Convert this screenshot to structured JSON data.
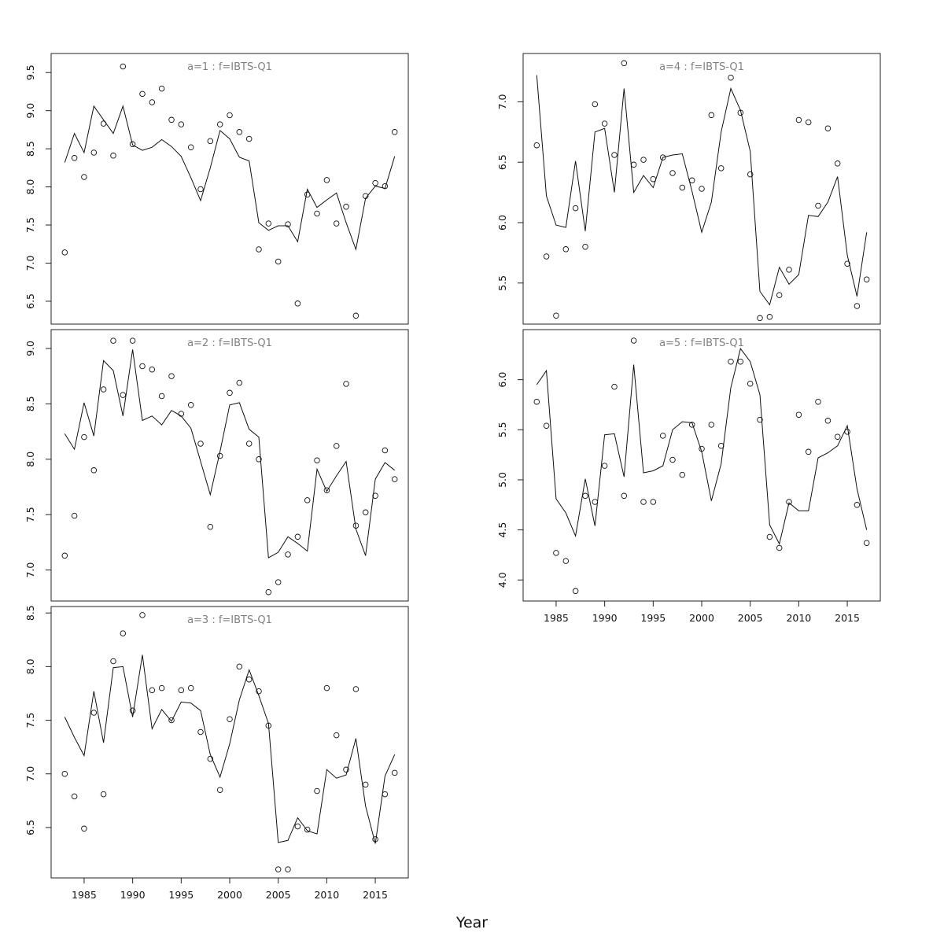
{
  "chart_data": {
    "type": "scatter",
    "xlabel": "Year",
    "panels": [
      {
        "title": "a=1  :  f=IBTS-Q1",
        "ylim": [
          6.2,
          9.75
        ],
        "yticks": [
          6.5,
          7.0,
          7.5,
          8.0,
          8.5,
          9.0,
          9.5
        ],
        "xticks": [],
        "x": [
          1983,
          1984,
          1985,
          1986,
          1987,
          1988,
          1989,
          1990,
          1991,
          1992,
          1993,
          1994,
          1995,
          1996,
          1997,
          1998,
          1999,
          2000,
          2001,
          2002,
          2003,
          2004,
          2005,
          2006,
          2007,
          2008,
          2009,
          2010,
          2011,
          2012,
          2013,
          2014,
          2015,
          2016,
          2017
        ],
        "observed": [
          7.14,
          8.38,
          8.13,
          8.45,
          8.83,
          8.41,
          9.58,
          8.56,
          9.22,
          9.11,
          9.29,
          8.88,
          8.82,
          8.52,
          7.97,
          8.6,
          8.82,
          8.94,
          8.72,
          8.63,
          7.18,
          7.52,
          7.02,
          7.51,
          6.47,
          7.9,
          7.65,
          8.09,
          7.52,
          7.74,
          6.31,
          7.88,
          8.05,
          8.01,
          8.72
        ],
        "fitted": [
          8.32,
          8.7,
          8.45,
          9.06,
          8.88,
          8.7,
          9.06,
          8.55,
          8.48,
          8.52,
          8.62,
          8.53,
          8.4,
          8.12,
          7.82,
          8.25,
          8.74,
          8.63,
          8.39,
          8.34,
          7.53,
          7.43,
          7.49,
          7.49,
          7.28,
          7.97,
          7.73,
          7.83,
          7.92,
          7.53,
          7.18,
          7.85,
          8.01,
          7.98,
          8.4
        ]
      },
      {
        "title": "a=2  :  f=IBTS-Q1",
        "ylim": [
          6.72,
          9.17
        ],
        "yticks": [
          7.0,
          7.5,
          8.0,
          8.5,
          9.0
        ],
        "xticks": [],
        "x": [
          1983,
          1984,
          1985,
          1986,
          1987,
          1988,
          1989,
          1990,
          1991,
          1992,
          1993,
          1994,
          1995,
          1996,
          1997,
          1998,
          1999,
          2000,
          2001,
          2002,
          2003,
          2004,
          2005,
          2006,
          2007,
          2008,
          2009,
          2010,
          2011,
          2012,
          2013,
          2014,
          2015,
          2016,
          2017
        ],
        "observed": [
          7.13,
          7.49,
          8.2,
          7.9,
          8.63,
          9.07,
          8.58,
          9.07,
          8.84,
          8.81,
          8.57,
          8.75,
          8.41,
          8.49,
          8.14,
          7.39,
          8.03,
          8.6,
          8.69,
          8.14,
          8.0,
          6.8,
          6.89,
          7.14,
          7.3,
          7.63,
          7.99,
          7.72,
          8.12,
          8.68,
          7.4,
          7.52,
          7.67,
          8.08,
          7.82
        ],
        "fitted": [
          8.23,
          8.09,
          8.51,
          8.21,
          8.89,
          8.8,
          8.39,
          8.99,
          8.35,
          8.39,
          8.31,
          8.44,
          8.39,
          8.28,
          7.98,
          7.68,
          8.07,
          8.49,
          8.51,
          8.27,
          8.2,
          7.11,
          7.16,
          7.3,
          7.24,
          7.17,
          7.91,
          7.71,
          7.85,
          7.98,
          7.37,
          7.13,
          7.82,
          7.97,
          7.9
        ]
      },
      {
        "title": "a=3  :  f=IBTS-Q1",
        "ylim": [
          6.03,
          8.56
        ],
        "yticks": [
          6.5,
          7.0,
          7.5,
          8.0,
          8.5
        ],
        "xticks": [
          1985,
          1990,
          1995,
          2000,
          2005,
          2010,
          2015
        ],
        "x": [
          1983,
          1984,
          1985,
          1986,
          1987,
          1988,
          1989,
          1990,
          1991,
          1992,
          1993,
          1994,
          1995,
          1996,
          1997,
          1998,
          1999,
          2000,
          2001,
          2002,
          2003,
          2004,
          2005,
          2006,
          2007,
          2008,
          2009,
          2010,
          2011,
          2012,
          2013,
          2014,
          2015,
          2016,
          2017
        ],
        "observed": [
          7.0,
          6.79,
          6.49,
          7.57,
          6.81,
          8.05,
          8.31,
          7.59,
          8.48,
          7.78,
          7.8,
          7.5,
          7.78,
          7.8,
          7.39,
          7.14,
          6.85,
          7.51,
          8.0,
          7.88,
          7.77,
          7.45,
          6.11,
          6.11,
          6.51,
          6.48,
          6.84,
          7.8,
          7.36,
          7.04,
          7.79,
          6.9,
          6.39,
          6.81,
          7.01
        ],
        "fitted": [
          7.53,
          7.34,
          7.17,
          7.77,
          7.29,
          7.99,
          8.0,
          7.53,
          8.11,
          7.42,
          7.6,
          7.49,
          7.67,
          7.66,
          7.59,
          7.18,
          6.97,
          7.28,
          7.69,
          7.97,
          7.73,
          7.47,
          6.36,
          6.38,
          6.59,
          6.47,
          6.44,
          7.04,
          6.96,
          6.99,
          7.33,
          6.7,
          6.35,
          6.98,
          7.18
        ]
      },
      {
        "title": "a=4  :  f=IBTS-Q1",
        "ylim": [
          5.16,
          7.4
        ],
        "yticks": [
          5.5,
          6.0,
          6.5,
          7.0
        ],
        "xticks": [],
        "x": [
          1983,
          1984,
          1985,
          1986,
          1987,
          1988,
          1989,
          1990,
          1991,
          1992,
          1993,
          1994,
          1995,
          1996,
          1997,
          1998,
          1999,
          2000,
          2001,
          2002,
          2003,
          2004,
          2005,
          2006,
          2007,
          2008,
          2009,
          2010,
          2011,
          2012,
          2013,
          2014,
          2015,
          2016,
          2017
        ],
        "observed": [
          6.64,
          5.72,
          5.23,
          5.78,
          6.12,
          5.8,
          6.98,
          6.82,
          6.56,
          7.32,
          6.48,
          6.52,
          6.36,
          6.54,
          6.41,
          6.29,
          6.35,
          6.28,
          6.89,
          6.45,
          7.2,
          6.91,
          6.4,
          5.21,
          5.22,
          5.4,
          5.61,
          6.85,
          6.83,
          6.14,
          6.78,
          6.49,
          5.66,
          5.31,
          5.53
        ],
        "fitted": [
          7.22,
          6.22,
          5.98,
          5.96,
          6.51,
          5.93,
          6.75,
          6.78,
          6.25,
          7.11,
          6.25,
          6.39,
          6.29,
          6.54,
          6.56,
          6.57,
          6.26,
          5.92,
          6.17,
          6.75,
          7.11,
          6.93,
          6.59,
          5.43,
          5.32,
          5.63,
          5.49,
          5.57,
          6.06,
          6.05,
          6.17,
          6.38,
          5.73,
          5.39,
          5.92
        ]
      },
      {
        "title": "a=5  :  f=IBTS-Q1",
        "ylim": [
          3.79,
          6.5
        ],
        "yticks": [
          4.0,
          4.5,
          5.0,
          5.5,
          6.0
        ],
        "xticks": [
          1985,
          1990,
          1995,
          2000,
          2005,
          2010,
          2015
        ],
        "x": [
          1983,
          1984,
          1985,
          1986,
          1987,
          1988,
          1989,
          1990,
          1991,
          1992,
          1993,
          1994,
          1995,
          1996,
          1997,
          1998,
          1999,
          2000,
          2001,
          2002,
          2003,
          2004,
          2005,
          2006,
          2007,
          2008,
          2009,
          2010,
          2011,
          2012,
          2013,
          2014,
          2015,
          2016,
          2017
        ],
        "observed": [
          5.78,
          5.54,
          4.27,
          4.19,
          3.89,
          4.84,
          4.78,
          5.14,
          5.93,
          4.84,
          6.39,
          4.78,
          4.78,
          5.44,
          5.2,
          5.05,
          5.55,
          5.31,
          5.55,
          5.34,
          6.18,
          6.18,
          5.96,
          5.6,
          4.43,
          4.32,
          4.78,
          5.65,
          5.28,
          5.78,
          5.59,
          5.43,
          5.48,
          4.75,
          4.37
        ],
        "fitted": [
          5.95,
          6.09,
          4.81,
          4.67,
          4.44,
          5.01,
          4.54,
          5.45,
          5.46,
          5.03,
          6.15,
          5.07,
          5.09,
          5.14,
          5.5,
          5.58,
          5.57,
          5.28,
          4.79,
          5.16,
          5.92,
          6.31,
          6.18,
          5.85,
          4.55,
          4.36,
          4.77,
          4.69,
          4.69,
          5.22,
          5.27,
          5.34,
          5.54,
          4.91,
          4.5
        ]
      }
    ]
  }
}
